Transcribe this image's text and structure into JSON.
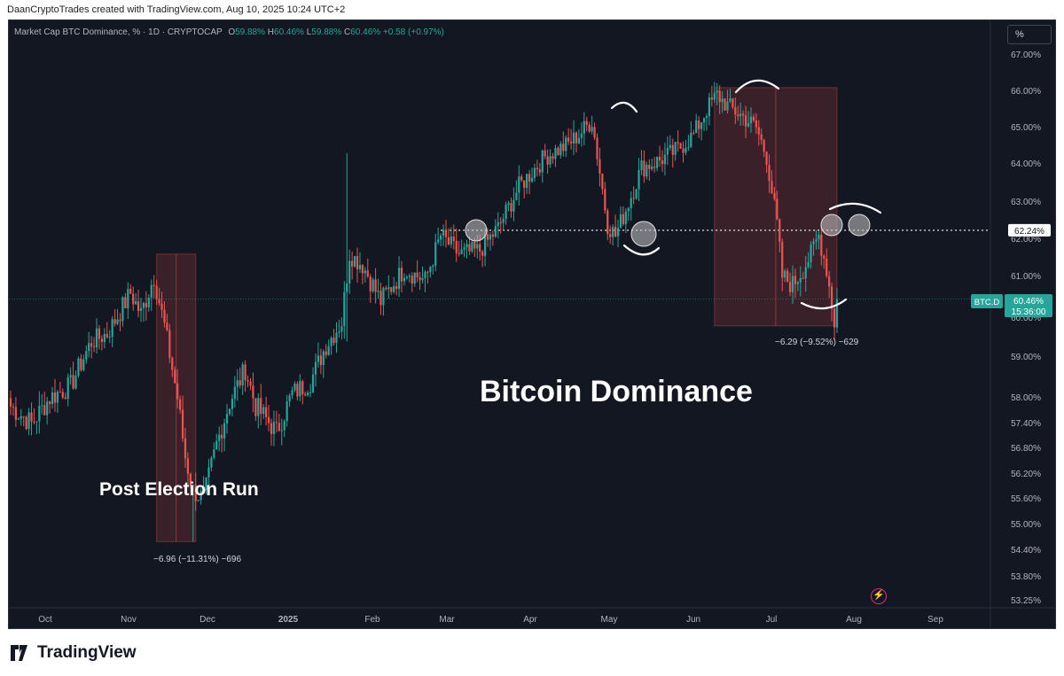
{
  "header": {
    "attribution": "DaanCryptoTrades created with TradingView.com, Aug 10, 2025 10:24 UTC+2"
  },
  "legend": {
    "symbol": "Market Cap BTC Dominance, % · 1D · CRYPTOCAP",
    "o_label": "O",
    "o_value": "59.88%",
    "h_label": "H",
    "h_value": "60.46%",
    "l_label": "L",
    "l_value": "59.88%",
    "c_label": "C",
    "c_value": "60.46%",
    "change": "+0.58 (+0.97%)"
  },
  "scale_button": "%",
  "annotations": {
    "main_title": "Bitcoin Dominance",
    "left_label": "Post Election Run",
    "measure_left": "−6.96 (−11.31%) −696",
    "measure_right": "−6.29 (−9.52%) −629"
  },
  "price_labels": {
    "level_value": "62.24%",
    "symbol_tag": "BTC.D",
    "last_value": "60.46%",
    "countdown": "15:36:00"
  },
  "footer": {
    "brand": "TradingView"
  },
  "colors": {
    "up": "#26a69a",
    "down": "#ef5350",
    "background": "#131722",
    "axis_text": "#b2b5be"
  },
  "chart_data": {
    "type": "candlestick",
    "y_unit": "%",
    "yticks": [
      {
        "label": "67.00%",
        "value": 67.0
      },
      {
        "label": "66.00%",
        "value": 66.0
      },
      {
        "label": "65.00%",
        "value": 65.0
      },
      {
        "label": "64.00%",
        "value": 64.0
      },
      {
        "label": "63.00%",
        "value": 63.0
      },
      {
        "label": "62.00%",
        "value": 62.0
      },
      {
        "label": "61.00%",
        "value": 61.0
      },
      {
        "label": "60.00%",
        "value": 60.0
      },
      {
        "label": "59.00%",
        "value": 59.0
      },
      {
        "label": "58.00%",
        "value": 58.0
      },
      {
        "label": "57.40%",
        "value": 57.4
      },
      {
        "label": "56.80%",
        "value": 56.8
      },
      {
        "label": "56.20%",
        "value": 56.2
      },
      {
        "label": "55.60%",
        "value": 55.6
      },
      {
        "label": "55.00%",
        "value": 55.0
      },
      {
        "label": "54.40%",
        "value": 54.4
      },
      {
        "label": "53.80%",
        "value": 53.8
      },
      {
        "label": "53.25%",
        "value": 53.25
      }
    ],
    "xticks": [
      "Oct",
      "Nov",
      "Dec",
      "2025",
      "Feb",
      "Mar",
      "Apr",
      "May",
      "Jun",
      "Jul",
      "Aug",
      "Sep"
    ],
    "horizontal_line": 62.24,
    "last_price": 60.46,
    "anchors": [
      [
        "2024-09-27",
        57.8
      ],
      [
        "2024-10-05",
        57.4
      ],
      [
        "2024-10-12",
        58.0
      ],
      [
        "2024-10-20",
        58.3
      ],
      [
        "2024-10-28",
        59.4
      ],
      [
        "2024-11-03",
        59.6
      ],
      [
        "2024-11-12",
        60.6
      ],
      [
        "2024-11-16",
        60.1
      ],
      [
        "2024-11-21",
        61.0
      ],
      [
        "2024-11-25",
        59.8
      ],
      [
        "2024-11-30",
        58.0
      ],
      [
        "2024-12-03",
        56.6
      ],
      [
        "2024-12-06",
        55.8
      ],
      [
        "2024-12-10",
        55.6
      ],
      [
        "2024-12-15",
        56.9
      ],
      [
        "2024-12-20",
        57.9
      ],
      [
        "2024-12-26",
        58.7
      ],
      [
        "2024-12-30",
        57.8
      ],
      [
        "2025-01-07",
        57.2
      ],
      [
        "2025-01-13",
        58.1
      ],
      [
        "2025-01-20",
        58.4
      ],
      [
        "2025-01-26",
        59.3
      ],
      [
        "2025-02-01",
        59.9
      ],
      [
        "2025-02-04",
        61.6
      ],
      [
        "2025-02-09",
        61.3
      ],
      [
        "2025-02-16",
        60.4
      ],
      [
        "2025-02-25",
        61.2
      ],
      [
        "2025-03-05",
        60.9
      ],
      [
        "2025-03-11",
        62.1
      ],
      [
        "2025-03-18",
        61.6
      ],
      [
        "2025-03-26",
        61.7
      ],
      [
        "2025-04-02",
        62.3
      ],
      [
        "2025-04-10",
        63.4
      ],
      [
        "2025-04-20",
        64.2
      ],
      [
        "2025-04-28",
        64.5
      ],
      [
        "2025-05-03",
        64.8
      ],
      [
        "2025-05-08",
        65.2
      ],
      [
        "2025-05-11",
        63.8
      ],
      [
        "2025-05-14",
        62.4
      ],
      [
        "2025-05-17",
        62.1
      ],
      [
        "2025-05-21",
        62.8
      ],
      [
        "2025-05-27",
        63.9
      ],
      [
        "2025-06-03",
        64.1
      ],
      [
        "2025-06-10",
        64.4
      ],
      [
        "2025-06-16",
        64.8
      ],
      [
        "2025-06-21",
        65.5
      ],
      [
        "2025-06-25",
        65.9
      ],
      [
        "2025-06-29",
        65.6
      ],
      [
        "2025-07-05",
        65.3
      ],
      [
        "2025-07-10",
        65.0
      ],
      [
        "2025-07-14",
        64.2
      ],
      [
        "2025-07-18",
        62.4
      ],
      [
        "2025-07-20",
        61.0
      ],
      [
        "2025-07-24",
        60.8
      ],
      [
        "2025-07-28",
        61.2
      ],
      [
        "2025-07-31",
        61.6
      ],
      [
        "2025-08-03",
        62.1
      ],
      [
        "2025-08-06",
        61.2
      ],
      [
        "2025-08-09",
        59.9
      ],
      [
        "2025-08-10",
        60.46
      ]
    ],
    "measure_boxes": [
      {
        "from": "2024-11-22",
        "to": "2024-12-07",
        "high": 61.6,
        "low": 54.6,
        "change": "−6.96 (−11.31%) −696"
      },
      {
        "from": "2025-06-24",
        "to": "2025-08-10",
        "high": 66.1,
        "low": 59.8,
        "change": "−6.29 (−9.52%) −629"
      }
    ]
  }
}
